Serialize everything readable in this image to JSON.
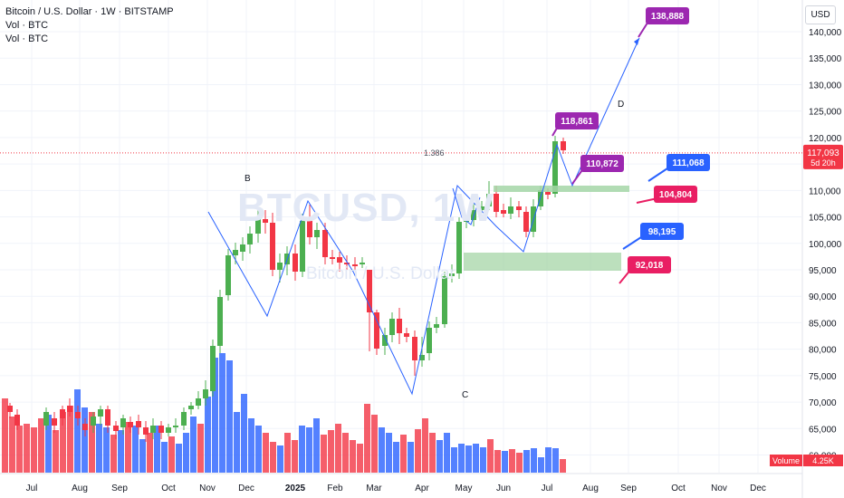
{
  "legend": {
    "symbol_line": "Bitcoin / U.S. Dollar · 1W · BITSTAMP",
    "vol_line_1": "Vol · BTC",
    "vol_line_2": "Vol · BTC"
  },
  "watermark": {
    "symbol": "BTCUSD, 1W",
    "name": "Bitcoin / U.S. Dollar"
  },
  "price_axis": {
    "unit": "USD",
    "ticks": [
      "140,000",
      "135,000",
      "130,000",
      "125,000",
      "120,000",
      "115,000",
      "110,000",
      "105,000",
      "100,000",
      "95,000",
      "90,000",
      "85,000",
      "80,000",
      "75,000",
      "70,000",
      "65,000",
      "60,000"
    ],
    "tick_values": [
      140000,
      135000,
      130000,
      125000,
      120000,
      115000,
      110000,
      105000,
      100000,
      95000,
      90000,
      85000,
      80000,
      75000,
      70000,
      65000,
      60000
    ],
    "current_price": "117,093",
    "current_price_value": 117093,
    "countdown": "5d 20h"
  },
  "time_axis": [
    "Jul",
    "Aug",
    "Sep",
    "Oct",
    "Nov",
    "Dec",
    "2025",
    "Feb",
    "Mar",
    "Apr",
    "May",
    "Jun",
    "Jul",
    "Aug",
    "Sep",
    "Oct",
    "Nov",
    "Dec"
  ],
  "volume_label": {
    "name": "Volume",
    "value": "4.25K"
  },
  "pattern_labels": [
    "B",
    "C",
    "D"
  ],
  "fib_label": "1.386",
  "price_callouts": [
    {
      "text": "138,888",
      "value": 138888,
      "color": "#9c27b0"
    },
    {
      "text": "118,861",
      "value": 118861,
      "color": "#9c27b0"
    },
    {
      "text": "110,872",
      "value": 110872,
      "color": "#9c27b0"
    },
    {
      "text": "111,068",
      "value": 111068,
      "color": "#2962ff"
    },
    {
      "text": "104,804",
      "value": 104804,
      "color": "#e91e63"
    },
    {
      "text": "98,195",
      "value": 98195,
      "color": "#2962ff"
    },
    {
      "text": "92,018",
      "value": 92018,
      "color": "#e91e63"
    }
  ],
  "colors": {
    "up": "#26a69a",
    "up_candle": "#4caf50",
    "down": "#f23645",
    "volume_up": "#2962ff",
    "volume_down": "#f23645",
    "pattern_line": "#2962ff",
    "zone": "#a5d6a7",
    "grid": "#f0f3fa",
    "axis_text": "#131722"
  }
}
